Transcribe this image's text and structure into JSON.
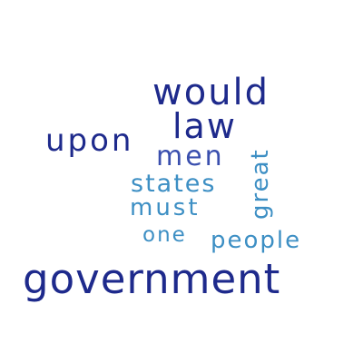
{
  "words": {
    "would": {
      "text": "would",
      "color": "#1e2a8c"
    },
    "law": {
      "text": "law",
      "color": "#1e2a8c"
    },
    "upon": {
      "text": "upon",
      "color": "#1e2a8c"
    },
    "men": {
      "text": "men",
      "color": "#3a4fae"
    },
    "great": {
      "text": "great",
      "color": "#3d8fc4"
    },
    "states": {
      "text": "states",
      "color": "#3d8fc4"
    },
    "must": {
      "text": "must",
      "color": "#3d8fc4"
    },
    "one": {
      "text": "one",
      "color": "#3d8fc4"
    },
    "people": {
      "text": "people",
      "color": "#3d8fc4"
    },
    "government": {
      "text": "government",
      "color": "#1e2a8c"
    }
  }
}
